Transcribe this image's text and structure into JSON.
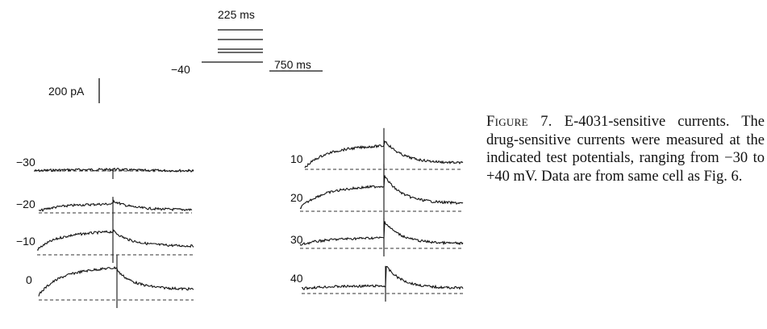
{
  "protocol": {
    "holding_label": "−40",
    "step_duration_label": "225 ms",
    "tail_duration_label": "750 ms"
  },
  "scale_bar": {
    "label": "200 pA"
  },
  "traces": {
    "left": [
      {
        "label": "−30",
        "potential_mv": -30
      },
      {
        "label": "−20",
        "potential_mv": -20
      },
      {
        "label": "−10",
        "potential_mv": -10
      },
      {
        "label": "0",
        "potential_mv": 0
      }
    ],
    "right": [
      {
        "label": "10",
        "potential_mv": 10
      },
      {
        "label": "20",
        "potential_mv": 20
      },
      {
        "label": "30",
        "potential_mv": 30
      },
      {
        "label": "40",
        "potential_mv": 40
      }
    ]
  },
  "caption": {
    "figure_number": "Figure 7.",
    "text": "E-4031-sensitive currents. The drug-sensitive currents were measured at the indicated test potentials, ranging from −30 to +40 mV. Data are from same cell as Fig. 6."
  }
}
